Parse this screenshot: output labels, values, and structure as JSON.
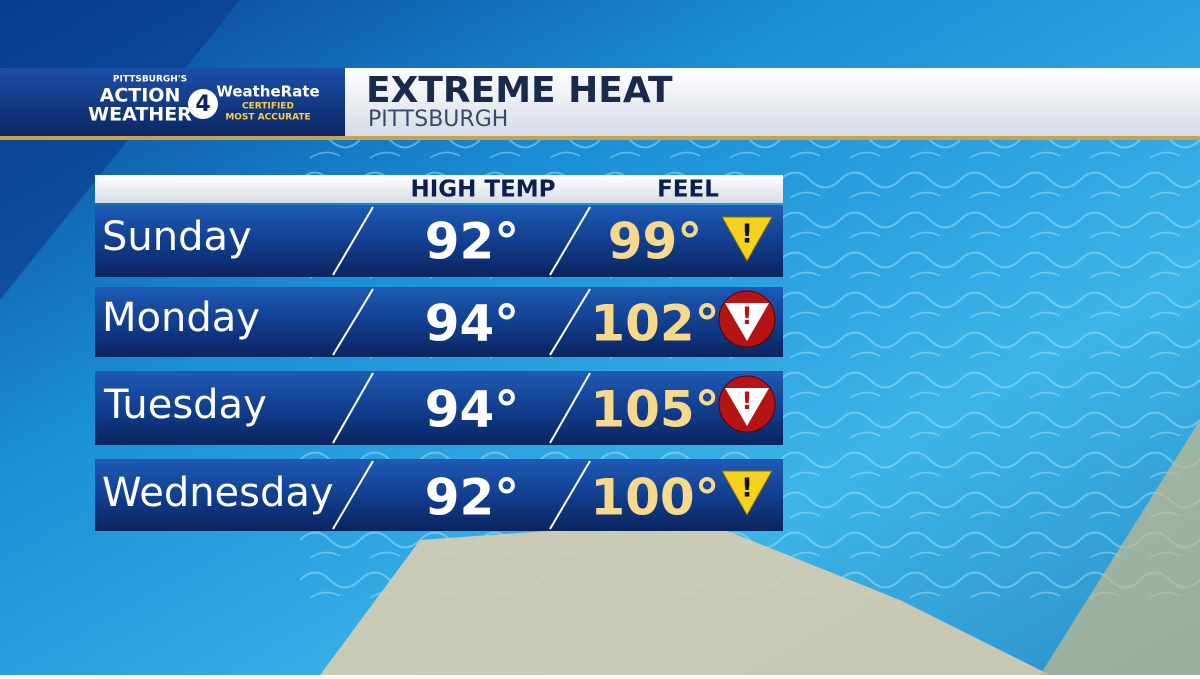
{
  "header": {
    "logo": {
      "city": "PITTSBURGH'S",
      "line1": "ACTION",
      "line2": "WEATHER",
      "channel": "4",
      "brand": "WeatheRate",
      "badge1": "CERTIFIED",
      "badge2": "MOST ACCURATE"
    },
    "title": "EXTREME HEAT",
    "subtitle": "PITTSBURGH"
  },
  "table": {
    "columns": [
      "HIGH TEMP",
      "FEEL"
    ],
    "rows": [
      [
        "Sunday",
        "92°",
        "99°"
      ],
      [
        "Monday",
        "94°",
        "102°"
      ],
      [
        "Tuesday",
        "94°",
        "105°"
      ],
      [
        "Wednesday",
        "92°",
        "100°"
      ]
    ]
  }
}
